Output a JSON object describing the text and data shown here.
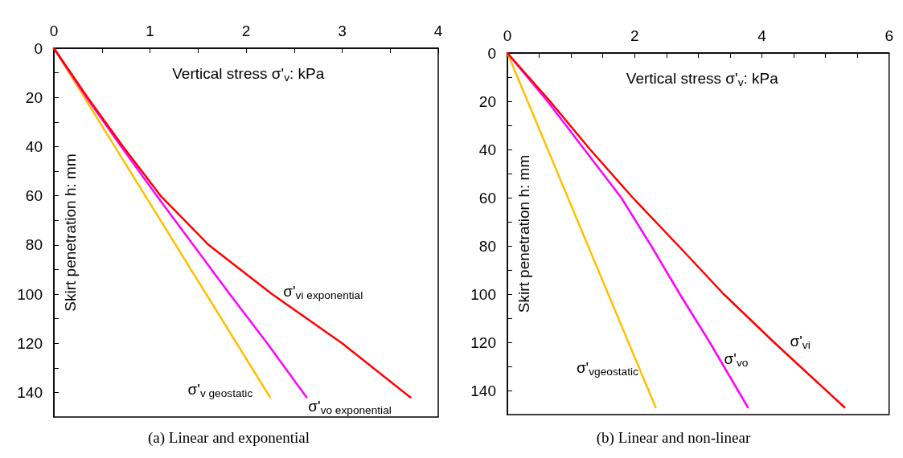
{
  "chart_data": [
    {
      "type": "line",
      "title": "(a) Linear and exponential",
      "xlabel": "Vertical stress σ'$_{v}$: kPa",
      "ylabel": "Skirt penetration h: mm",
      "xlim": [
        0,
        4
      ],
      "xticks": [
        0,
        {
          "value": 0.5,
          "label": null
        },
        1,
        {
          "value": 1.5,
          "label": null
        },
        2,
        {
          "value": 2.5,
          "label": null
        },
        3,
        {
          "value": 3.5,
          "label": null
        },
        4
      ],
      "ylim": [
        150,
        0
      ],
      "yticks": [
        0,
        {
          "value": 10,
          "label": null
        },
        20,
        {
          "value": 30,
          "label": null
        },
        40,
        {
          "value": 50,
          "label": null
        },
        60,
        {
          "value": 70,
          "label": null
        },
        80,
        {
          "value": 90,
          "label": null
        },
        100,
        {
          "value": 110,
          "label": null
        },
        120,
        {
          "value": 130,
          "label": null
        },
        140
      ],
      "grid": false,
      "line_style": "solid",
      "series": [
        {
          "name": "σ'$_{v geostatic}$",
          "color": "#ffc000",
          "x": [
            0,
            2.25
          ],
          "values": [
            0,
            142
          ]
        },
        {
          "name": "σ'$_{vo exponential}$",
          "color": "#ff00ff",
          "x": [
            0,
            0.34,
            0.7,
            1.07,
            1.45,
            1.83,
            2.22,
            2.63
          ],
          "values": [
            0,
            20,
            40,
            60,
            80,
            100,
            120,
            142
          ]
        },
        {
          "name": "σ'$_{vi exponential}$",
          "color": "#ff0000",
          "x": [
            0,
            0.35,
            0.72,
            1.11,
            1.61,
            2.27,
            3.0,
            3.71
          ],
          "values": [
            0,
            20,
            40,
            60,
            80,
            100,
            120,
            142
          ]
        }
      ]
    },
    {
      "type": "line",
      "title": "(b) Linear and non-linear",
      "xlabel": "Vertical stress σ'$_{v}$: kPa",
      "ylabel": "Skirt penetration h: mm",
      "xlim": [
        0,
        6
      ],
      "xticks": [
        0,
        {
          "value": 0.5,
          "label": null
        },
        {
          "value": 1,
          "label": null
        },
        {
          "value": 1.5,
          "label": null
        },
        2,
        {
          "value": 2.5,
          "label": null
        },
        {
          "value": 3,
          "label": null
        },
        {
          "value": 3.5,
          "label": null
        },
        4,
        {
          "value": 4.5,
          "label": null
        },
        {
          "value": 5,
          "label": null
        },
        {
          "value": 5.5,
          "label": null
        },
        6
      ],
      "ylim": [
        150,
        0
      ],
      "yticks": [
        0,
        {
          "value": 10,
          "label": null
        },
        20,
        {
          "value": 30,
          "label": null
        },
        40,
        {
          "value": 50,
          "label": null
        },
        60,
        {
          "value": 70,
          "label": null
        },
        80,
        {
          "value": 90,
          "label": null
        },
        100,
        {
          "value": 110,
          "label": null
        },
        120,
        {
          "value": 130,
          "label": null
        },
        140
      ],
      "grid": false,
      "line_style": "solid",
      "series": [
        {
          "name": "σ'$_{vgeostatic}$",
          "color": "#ffc000",
          "x": [
            0,
            2.33
          ],
          "values": [
            0,
            147
          ]
        },
        {
          "name": "σ'$_{vo}$",
          "color": "#ff00ff",
          "x": [
            0,
            0.63,
            1.21,
            1.79,
            2.26,
            2.71,
            3.18,
            3.78
          ],
          "values": [
            0,
            20,
            40,
            60,
            80,
            100,
            120,
            147
          ]
        },
        {
          "name": "σ'$_{vi}$",
          "color": "#ff0000",
          "x": [
            0,
            0.67,
            1.3,
            1.97,
            2.69,
            3.4,
            4.19,
            5.3
          ],
          "values": [
            0,
            20,
            40,
            60,
            80,
            100,
            120,
            147
          ]
        }
      ]
    }
  ]
}
